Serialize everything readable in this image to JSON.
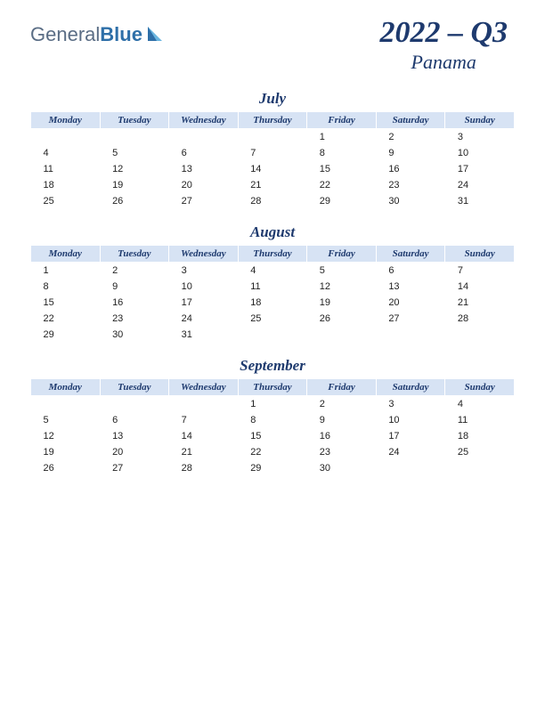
{
  "logo": {
    "text1": "General",
    "text2": "Blue",
    "color1": "#5a6d85",
    "color2": "#2e6fa8",
    "icon_colors": [
      "#6bb6e0",
      "#2e6fa8"
    ]
  },
  "title": {
    "main": "2022 – Q3",
    "sub": "Panama",
    "color": "#1e3a6e",
    "main_fontsize": 34,
    "sub_fontsize": 22
  },
  "header_bg": "#d7e3f4",
  "day_headers": [
    "Monday",
    "Tuesday",
    "Wednesday",
    "Thursday",
    "Friday",
    "Saturday",
    "Sunday"
  ],
  "months": [
    {
      "name": "July",
      "weeks": [
        [
          "",
          "",
          "",
          "",
          "1",
          "2",
          "3"
        ],
        [
          "4",
          "5",
          "6",
          "7",
          "8",
          "9",
          "10"
        ],
        [
          "11",
          "12",
          "13",
          "14",
          "15",
          "16",
          "17"
        ],
        [
          "18",
          "19",
          "20",
          "21",
          "22",
          "23",
          "24"
        ],
        [
          "25",
          "26",
          "27",
          "28",
          "29",
          "30",
          "31"
        ]
      ]
    },
    {
      "name": "August",
      "weeks": [
        [
          "1",
          "2",
          "3",
          "4",
          "5",
          "6",
          "7"
        ],
        [
          "8",
          "9",
          "10",
          "11",
          "12",
          "13",
          "14"
        ],
        [
          "15",
          "16",
          "17",
          "18",
          "19",
          "20",
          "21"
        ],
        [
          "22",
          "23",
          "24",
          "25",
          "26",
          "27",
          "28"
        ],
        [
          "29",
          "30",
          "31",
          "",
          "",
          "",
          ""
        ]
      ]
    },
    {
      "name": "September",
      "weeks": [
        [
          "",
          "",
          "",
          "1",
          "2",
          "3",
          "4"
        ],
        [
          "5",
          "6",
          "7",
          "8",
          "9",
          "10",
          "11"
        ],
        [
          "12",
          "13",
          "14",
          "15",
          "16",
          "17",
          "18"
        ],
        [
          "19",
          "20",
          "21",
          "22",
          "23",
          "24",
          "25"
        ],
        [
          "26",
          "27",
          "28",
          "29",
          "30",
          "",
          ""
        ]
      ]
    }
  ]
}
